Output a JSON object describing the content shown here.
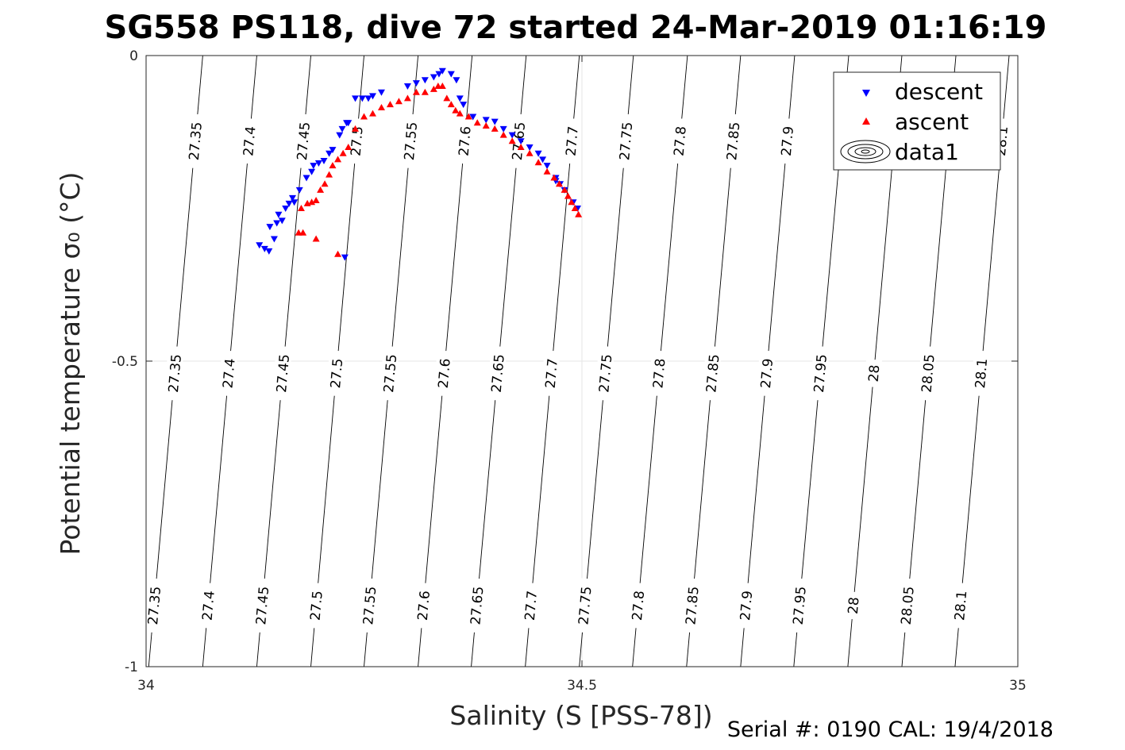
{
  "title": "SG558 PS118, dive 72 started 24-Mar-2019 01:16:19",
  "footer": "Serial #: 0190  CAL: 19/4/2018",
  "colors": {
    "descent": "#0000ff",
    "ascent": "#ff0000",
    "contour": "#000000",
    "grid": "#e6e6e6"
  },
  "chart_data": {
    "type": "scatter",
    "xlabel": "Salinity (S [PSS-78])",
    "ylabel": "Potential temperature σ₀ (°C)",
    "xlim": [
      34,
      35
    ],
    "ylim": [
      -1,
      0
    ],
    "xticks": [
      34,
      34.5,
      35
    ],
    "yticks": [
      0,
      -0.5,
      -1
    ],
    "grid": true,
    "legend": {
      "placement": "top-right",
      "entries": [
        "descent",
        "ascent",
        "data1"
      ]
    },
    "isopycnals": {
      "levels": [
        27.35,
        27.4,
        27.45,
        27.5,
        27.55,
        27.6,
        27.65,
        27.7,
        27.75,
        27.8,
        27.85,
        27.9,
        27.95,
        28,
        28.05,
        28.1
      ],
      "S_at_top": [
        34.065,
        34.127,
        34.189,
        34.25,
        34.312,
        34.374,
        34.436,
        34.497,
        34.559,
        34.621,
        34.682,
        34.744,
        34.806,
        34.867,
        34.929,
        34.99
      ],
      "S_at_bottom": [
        34.003,
        34.065,
        34.127,
        34.189,
        34.25,
        34.312,
        34.373,
        34.435,
        34.497,
        34.558,
        34.62,
        34.682,
        34.743,
        34.805,
        34.867,
        34.928
      ],
      "label_rows": [
        {
          "T": -0.14,
          "levels": [
            27.35,
            27.4,
            27.45,
            27.5,
            27.55,
            27.6,
            27.65,
            27.7,
            27.75,
            27.8,
            27.85,
            27.9,
            28.1
          ]
        },
        {
          "T": -0.52,
          "levels": [
            27.35,
            27.4,
            27.45,
            27.5,
            27.55,
            27.6,
            27.65,
            27.7,
            27.75,
            27.8,
            27.85,
            27.9,
            27.95,
            28,
            28.05,
            28.1
          ]
        },
        {
          "T": -0.9,
          "levels": [
            27.35,
            27.4,
            27.45,
            27.5,
            27.55,
            27.6,
            27.65,
            27.7,
            27.75,
            27.8,
            27.85,
            27.9,
            27.95,
            28,
            28.05,
            28.1
          ]
        }
      ]
    },
    "series": [
      {
        "name": "descent",
        "marker": "triangle-down",
        "points": [
          [
            34.13,
            -0.31
          ],
          [
            34.136,
            -0.316
          ],
          [
            34.141,
            -0.32
          ],
          [
            34.147,
            -0.3
          ],
          [
            34.142,
            -0.28
          ],
          [
            34.15,
            -0.274
          ],
          [
            34.156,
            -0.27
          ],
          [
            34.152,
            -0.26
          ],
          [
            34.16,
            -0.25
          ],
          [
            34.164,
            -0.242
          ],
          [
            34.17,
            -0.24
          ],
          [
            34.168,
            -0.233
          ],
          [
            34.176,
            -0.22
          ],
          [
            34.184,
            -0.2
          ],
          [
            34.19,
            -0.19
          ],
          [
            34.192,
            -0.18
          ],
          [
            34.198,
            -0.176
          ],
          [
            34.204,
            -0.172
          ],
          [
            34.21,
            -0.16
          ],
          [
            34.214,
            -0.154
          ],
          [
            34.222,
            -0.13
          ],
          [
            34.225,
            -0.12
          ],
          [
            34.232,
            -0.11
          ],
          [
            34.23,
            -0.11
          ],
          [
            34.24,
            -0.07
          ],
          [
            34.248,
            -0.07
          ],
          [
            34.255,
            -0.07
          ],
          [
            34.26,
            -0.066
          ],
          [
            34.27,
            -0.06
          ],
          [
            34.3,
            -0.05
          ],
          [
            34.31,
            -0.045
          ],
          [
            34.32,
            -0.04
          ],
          [
            34.33,
            -0.035
          ],
          [
            34.336,
            -0.03
          ],
          [
            34.34,
            -0.025
          ],
          [
            34.35,
            -0.03
          ],
          [
            34.356,
            -0.04
          ],
          [
            34.36,
            -0.07
          ],
          [
            34.364,
            -0.08
          ],
          [
            34.375,
            -0.1
          ],
          [
            34.39,
            -0.105
          ],
          [
            34.4,
            -0.108
          ],
          [
            34.41,
            -0.12
          ],
          [
            34.42,
            -0.13
          ],
          [
            34.43,
            -0.14
          ],
          [
            34.44,
            -0.15
          ],
          [
            34.45,
            -0.16
          ],
          [
            34.455,
            -0.17
          ],
          [
            34.46,
            -0.18
          ],
          [
            34.47,
            -0.2
          ],
          [
            34.475,
            -0.21
          ],
          [
            34.48,
            -0.22
          ],
          [
            34.49,
            -0.24
          ],
          [
            34.495,
            -0.25
          ],
          [
            34.47,
            -0.205
          ],
          [
            34.228,
            -0.33
          ]
        ]
      },
      {
        "name": "ascent",
        "marker": "triangle-up",
        "points": [
          [
            34.175,
            -0.29
          ],
          [
            34.18,
            -0.29
          ],
          [
            34.195,
            -0.3
          ],
          [
            34.178,
            -0.25
          ],
          [
            34.185,
            -0.242
          ],
          [
            34.19,
            -0.24
          ],
          [
            34.195,
            -0.237
          ],
          [
            34.2,
            -0.22
          ],
          [
            34.205,
            -0.21
          ],
          [
            34.21,
            -0.195
          ],
          [
            34.214,
            -0.18
          ],
          [
            34.22,
            -0.17
          ],
          [
            34.226,
            -0.16
          ],
          [
            34.232,
            -0.15
          ],
          [
            34.24,
            -0.12
          ],
          [
            34.25,
            -0.1
          ],
          [
            34.26,
            -0.095
          ],
          [
            34.27,
            -0.085
          ],
          [
            34.28,
            -0.08
          ],
          [
            34.29,
            -0.075
          ],
          [
            34.3,
            -0.07
          ],
          [
            34.31,
            -0.06
          ],
          [
            34.32,
            -0.06
          ],
          [
            34.33,
            -0.055
          ],
          [
            34.335,
            -0.05
          ],
          [
            34.34,
            -0.05
          ],
          [
            34.345,
            -0.07
          ],
          [
            34.35,
            -0.08
          ],
          [
            34.355,
            -0.09
          ],
          [
            34.36,
            -0.095
          ],
          [
            34.37,
            -0.1
          ],
          [
            34.38,
            -0.11
          ],
          [
            34.39,
            -0.115
          ],
          [
            34.4,
            -0.12
          ],
          [
            34.41,
            -0.13
          ],
          [
            34.42,
            -0.14
          ],
          [
            34.43,
            -0.15
          ],
          [
            34.44,
            -0.16
          ],
          [
            34.45,
            -0.175
          ],
          [
            34.46,
            -0.19
          ],
          [
            34.468,
            -0.2
          ],
          [
            34.474,
            -0.21
          ],
          [
            34.48,
            -0.22
          ],
          [
            34.484,
            -0.23
          ],
          [
            34.488,
            -0.24
          ],
          [
            34.492,
            -0.25
          ],
          [
            34.496,
            -0.26
          ],
          [
            34.22,
            -0.325
          ]
        ]
      },
      {
        "name": "data1",
        "marker": "contour",
        "points": []
      }
    ]
  }
}
